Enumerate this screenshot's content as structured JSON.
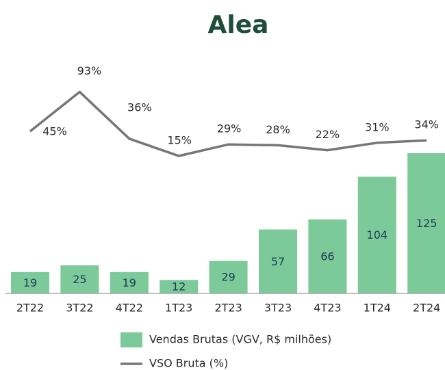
{
  "chart_data": {
    "type": "bar",
    "title": "Alea",
    "categories": [
      "2T22",
      "3T22",
      "4T22",
      "1T23",
      "2T23",
      "3T23",
      "4T23",
      "1T24",
      "2T24"
    ],
    "series": [
      {
        "name": "Vendas Brutas (VGV, R$ milhões)",
        "type": "bar",
        "color": "#7cc99a",
        "values": [
          19,
          25,
          19,
          12,
          29,
          57,
          66,
          104,
          125
        ]
      },
      {
        "name": "VSO Bruta (%)",
        "type": "line",
        "axis": "y2",
        "color": "#767676",
        "values": [
          45,
          93,
          36,
          15,
          29,
          28,
          22,
          31,
          34
        ],
        "value_labels": [
          "45%",
          "93%",
          "36%",
          "15%",
          "29%",
          "28%",
          "22%",
          "31%",
          "34%"
        ]
      }
    ],
    "ylim": [
      0,
      150
    ],
    "y2lim": [
      0,
      100
    ],
    "legend": "bottom"
  }
}
